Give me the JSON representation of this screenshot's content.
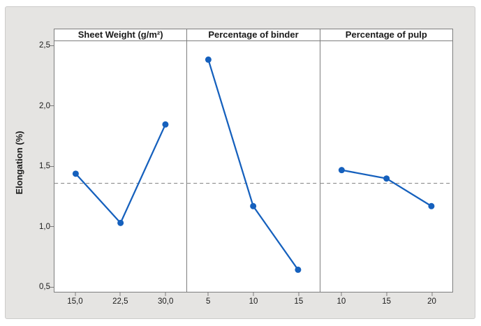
{
  "chart_data": {
    "type": "line",
    "title": "",
    "ylabel": "Elongation (%)",
    "ylim": [
      0.5,
      2.5
    ],
    "yticks_top_to_bottom": [
      "2,5",
      "2,0",
      "1,5",
      "1,0",
      "0,5"
    ],
    "ytick_values_top_to_bottom": [
      2.5,
      2.0,
      1.5,
      1.0,
      0.5
    ],
    "grand_mean_dashed_line": 1.36,
    "grid": false,
    "legend": "none",
    "panels": [
      {
        "header": "Sheet Weight (g/m²)",
        "categories": [
          "15,0",
          "22,5",
          "30,0"
        ],
        "category_values": [
          15.0,
          22.5,
          30.0
        ],
        "values": [
          1.44,
          1.03,
          1.85
        ]
      },
      {
        "header": "Percentage of binder",
        "categories": [
          "5",
          "10",
          "15"
        ],
        "category_values": [
          5,
          10,
          15
        ],
        "values": [
          2.39,
          1.17,
          0.64
        ]
      },
      {
        "header": "Percentage of pulp",
        "categories": [
          "10",
          "15",
          "20"
        ],
        "category_values": [
          10,
          15,
          20
        ],
        "values": [
          1.47,
          1.4,
          1.17
        ]
      }
    ],
    "colors": {
      "line": "#1560bd",
      "marker": "#1560bd",
      "dashed_mean_line": "#8c8c8c",
      "figure_background": "#e5e4e2",
      "panel_background": "#ffffff",
      "panel_border": "#7d7d7d"
    }
  }
}
